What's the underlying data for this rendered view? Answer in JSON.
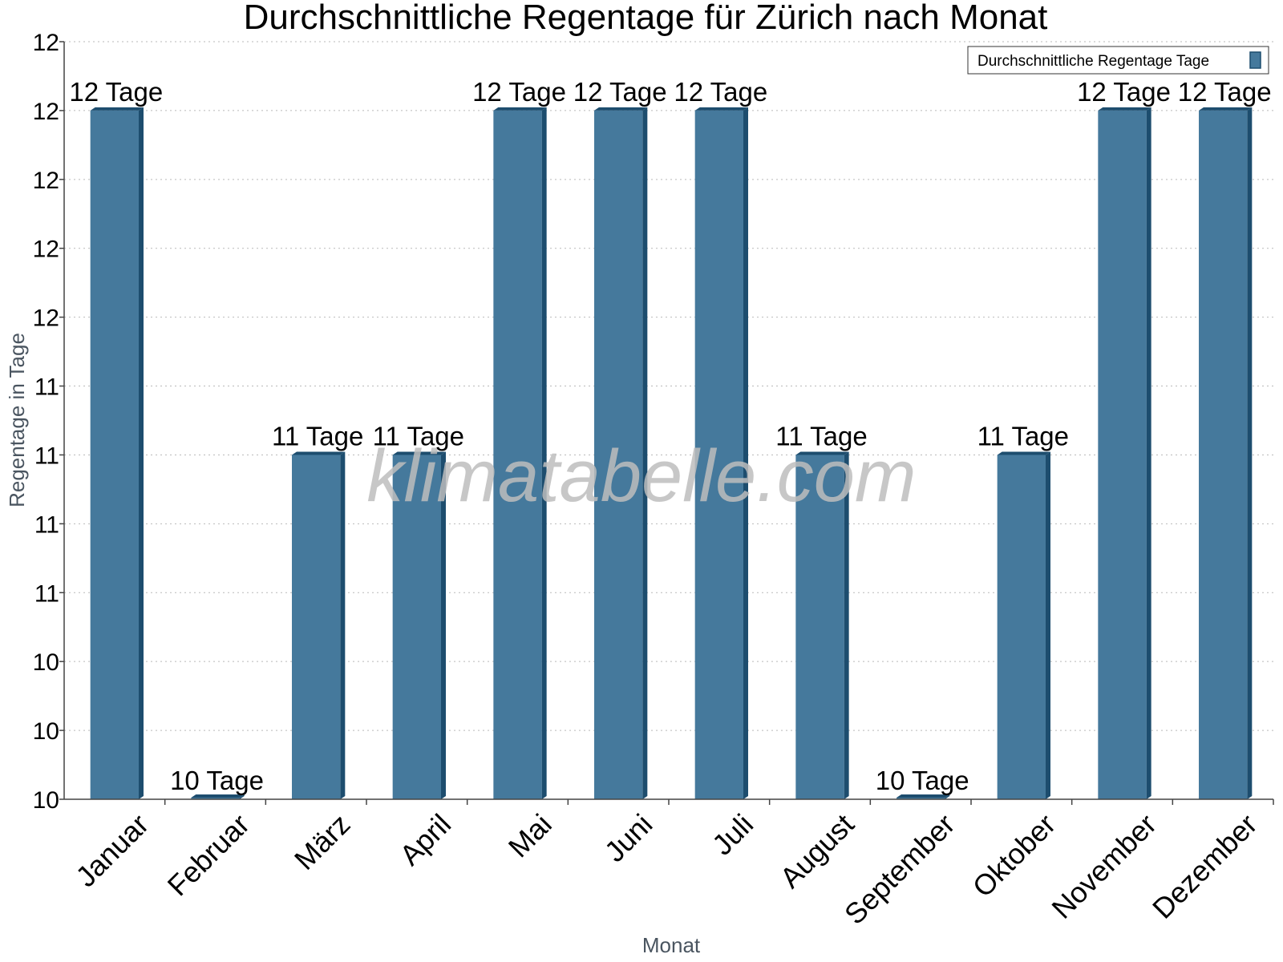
{
  "chart_data": {
    "type": "bar",
    "title": "Durchschnittliche Regentage für Zürich nach Monat",
    "xlabel": "Monat",
    "ylabel": "Regentage in Tage",
    "categories": [
      "Januar",
      "Februar",
      "März",
      "April",
      "Mai",
      "Juni",
      "Juli",
      "August",
      "September",
      "Oktober",
      "November",
      "Dezember"
    ],
    "series": [
      {
        "name": "Durchschnittliche Regentage Tage",
        "values": [
          12.0,
          10.0,
          11.0,
          11.0,
          12.0,
          12.0,
          12.0,
          11.0,
          10.0,
          11.0,
          12.0,
          12.0
        ],
        "color": "#45799c",
        "side_color": "#1d4d6e"
      }
    ],
    "data_labels": [
      "12 Tage",
      "10 Tage",
      "11 Tage",
      "11 Tage",
      "12 Tage",
      "12 Tage",
      "12 Tage",
      "11 Tage",
      "10 Tage",
      "11 Tage",
      "12 Tage",
      "12 Tage"
    ],
    "y_tick_labels": [
      "10",
      "10",
      "10",
      "11",
      "11",
      "11",
      "11",
      "12",
      "12",
      "12",
      "12",
      "12"
    ],
    "ylim": [
      10.0,
      12.2
    ],
    "grid": true,
    "legend_position": "top-right",
    "watermark": "klimatabelle.com"
  }
}
